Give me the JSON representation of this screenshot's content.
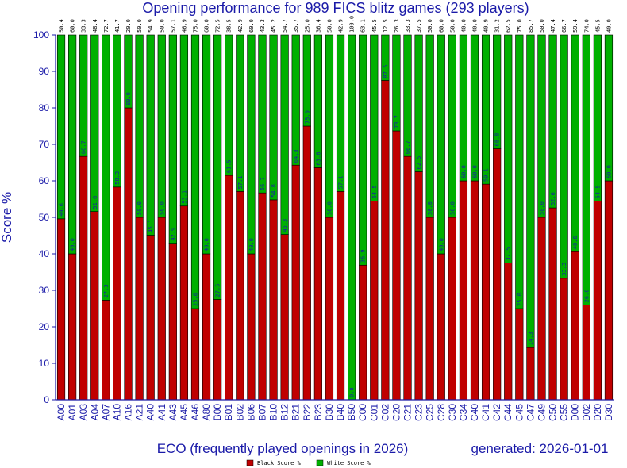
{
  "chart_data": {
    "type": "bar",
    "stacked": true,
    "title": "Opening performance for 989 FICS blitz games (293 players)",
    "ylabel": "Score %",
    "xlabel": "ECO (frequently played openings in 2026)",
    "generated": "generated: 2026-01-01",
    "ylim": [
      0,
      100
    ],
    "yticks": [
      0,
      10,
      20,
      30,
      40,
      50,
      60,
      70,
      80,
      90,
      100
    ],
    "grid": false,
    "legend_placement": "bottom-center",
    "categories": [
      "A00",
      "A01",
      "A03",
      "A04",
      "A07",
      "A10",
      "A16",
      "A21",
      "A40",
      "A41",
      "A43",
      "A45",
      "A46",
      "A80",
      "B00",
      "B01",
      "B02",
      "B06",
      "B07",
      "B10",
      "B12",
      "B21",
      "B22",
      "B23",
      "B30",
      "B40",
      "B50",
      "C00",
      "C01",
      "C02",
      "C20",
      "C21",
      "C23",
      "C25",
      "C28",
      "C30",
      "C34",
      "C40",
      "C41",
      "C42",
      "C44",
      "C45",
      "C47",
      "C49",
      "C50",
      "C55",
      "D00",
      "D02",
      "D20",
      "D30"
    ],
    "series": [
      {
        "name": "Black Score %",
        "color": "#c00000",
        "labels": [
          "49.6",
          "40.0",
          "66.7",
          "51.6",
          "27.3",
          "58.3",
          "80.0",
          "50.0",
          "45.1",
          "50.0",
          "42.9",
          "53.1",
          "25.0",
          "40.0",
          "27.5",
          "61.5",
          "57.1",
          "40.0",
          "56.7",
          "54.8",
          "45.3",
          "64.3",
          "75.0",
          "63.6",
          "50.0",
          "57.1",
          "0.0",
          "36.9",
          "54.5",
          "87.5",
          "73.7",
          "66.7",
          "62.5",
          "50.0",
          "40.0",
          "50.0",
          "60.0",
          "60.0",
          "59.1",
          "68.8",
          "37.5",
          "25.0",
          "14.3",
          "50.0",
          "52.6",
          "33.3",
          "40.6",
          "26.0",
          "54.5",
          "60.0"
        ],
        "values": [
          49.6,
          40.0,
          66.7,
          51.6,
          27.3,
          58.3,
          80.0,
          50.0,
          45.1,
          50.0,
          42.9,
          53.1,
          25.0,
          40.0,
          27.5,
          61.5,
          57.1,
          40.0,
          56.7,
          54.8,
          45.3,
          64.3,
          75.0,
          63.6,
          50.0,
          57.1,
          0.0,
          36.9,
          54.5,
          87.5,
          73.7,
          66.7,
          62.5,
          50.0,
          40.0,
          50.0,
          60.0,
          60.0,
          59.1,
          68.8,
          37.5,
          25.0,
          14.3,
          50.0,
          52.6,
          33.3,
          40.6,
          26.0,
          54.5,
          60.0
        ]
      },
      {
        "name": "White Score %",
        "color": "#00b000",
        "labels": [
          "50.4",
          "60.0",
          "33.3",
          "48.4",
          "72.7",
          "41.7",
          "20.0",
          "50.0",
          "54.9",
          "50.0",
          "57.1",
          "46.9",
          "75.0",
          "60.0",
          "72.5",
          "38.5",
          "42.9",
          "60.0",
          "43.3",
          "45.2",
          "54.7",
          "35.7",
          "25.0",
          "36.4",
          "50.0",
          "42.9",
          "100.0",
          "63.1",
          "45.5",
          "12.5",
          "26.3",
          "33.3",
          "37.5",
          "50.0",
          "60.0",
          "50.0",
          "40.0",
          "40.0",
          "40.9",
          "31.2",
          "62.5",
          "75.0",
          "85.7",
          "50.0",
          "47.4",
          "66.7",
          "59.4",
          "74.0",
          "45.5",
          "40.0"
        ],
        "values": [
          50.4,
          60.0,
          33.3,
          48.4,
          72.7,
          41.7,
          20.0,
          50.0,
          54.9,
          50.0,
          57.1,
          46.9,
          75.0,
          60.0,
          72.5,
          38.5,
          42.9,
          60.0,
          43.3,
          45.2,
          54.7,
          35.7,
          25.0,
          36.4,
          50.0,
          42.9,
          100.0,
          63.1,
          45.5,
          12.5,
          26.3,
          33.3,
          37.5,
          50.0,
          60.0,
          50.0,
          40.0,
          40.0,
          40.9,
          31.2,
          62.5,
          75.0,
          85.7,
          50.0,
          47.4,
          66.7,
          59.4,
          74.0,
          45.5,
          40.0
        ]
      }
    ]
  }
}
